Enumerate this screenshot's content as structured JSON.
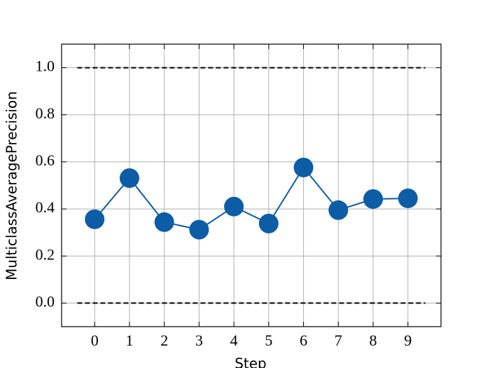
{
  "chart_data": {
    "type": "line",
    "x_label": "Step",
    "y_label": "MulticlassAveragePrecision",
    "x": [
      0,
      1,
      2,
      3,
      4,
      5,
      6,
      7,
      8,
      9
    ],
    "series": [
      {
        "name": "MulticlassAveragePrecision",
        "color": "#0C5DA5",
        "values": [
          0.356,
          0.531,
          0.344,
          0.312,
          0.41,
          0.338,
          0.576,
          0.395,
          0.442,
          0.445
        ]
      }
    ],
    "reference_lines": [
      0,
      1
    ],
    "reference_xlim": [
      -0.5,
      9.5
    ],
    "xlim": [
      -0.95,
      9.95
    ],
    "ylim": [
      -0.1,
      1.1
    ],
    "xticks": [
      0,
      1,
      2,
      3,
      4,
      5,
      6,
      7,
      8,
      9
    ],
    "yticks": [
      {
        "value": 0,
        "label": "0.0"
      },
      {
        "value": 0.2,
        "label": "0.2"
      },
      {
        "value": 0.4,
        "label": "0.4"
      },
      {
        "value": 0.6,
        "label": "0.6"
      },
      {
        "value": 0.8,
        "label": "0.8"
      },
      {
        "value": 1,
        "label": "1.0"
      }
    ],
    "grid": true,
    "legend": false
  }
}
